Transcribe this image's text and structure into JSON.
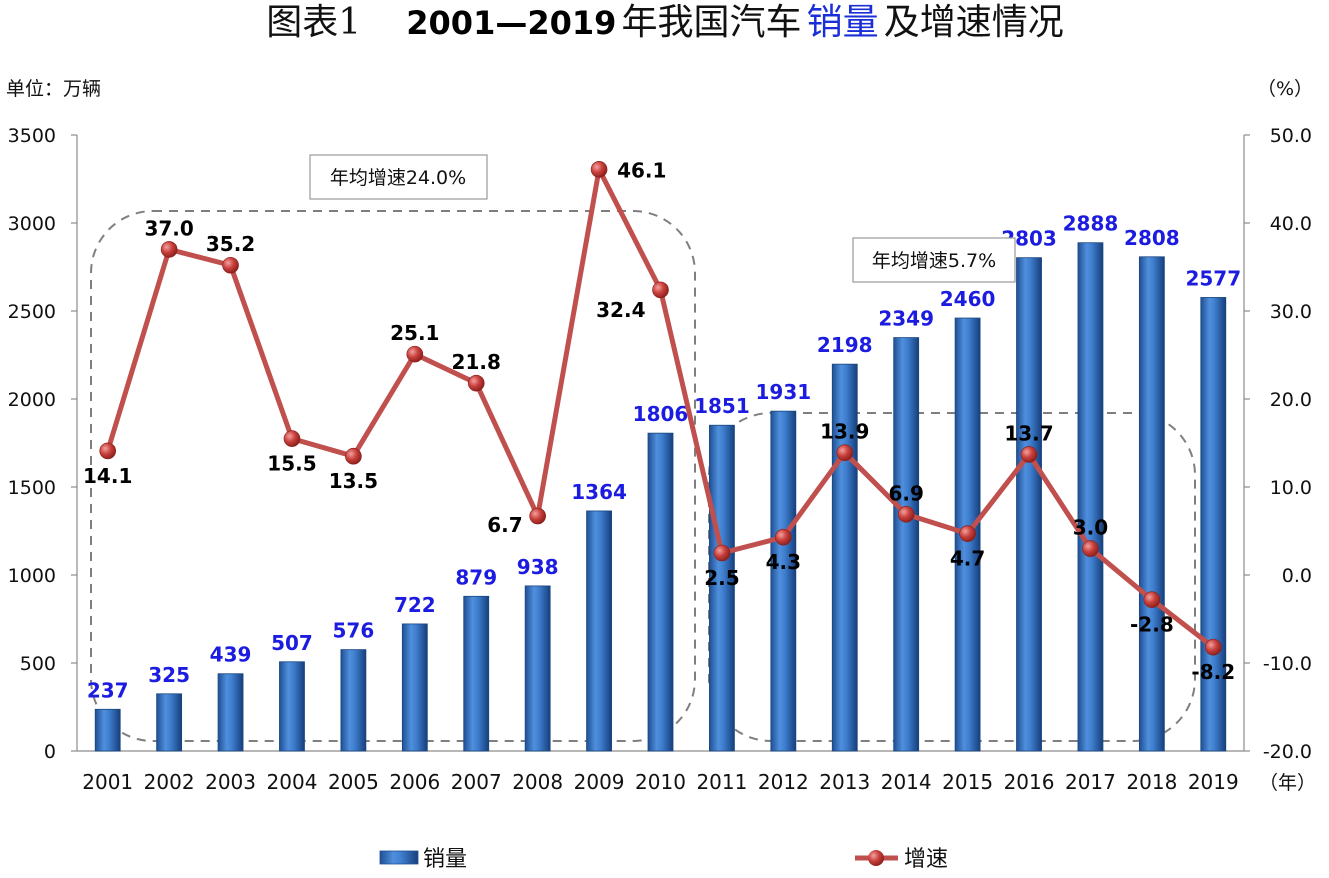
{
  "title": {
    "prefix": "图表1",
    "range": "2001—2019",
    "pre": "年我国汽车",
    "highlight": "销量",
    "post": "及增速情况"
  },
  "left_unit": "单位：万辆",
  "right_unit": "（%）",
  "x_unit": "（年）",
  "annotations": {
    "period1": "年均增速24.0%",
    "period2": "年均增速5.7%"
  },
  "legend": {
    "bar": "销量",
    "line": "增速"
  },
  "colors": {
    "bar": "#2f6fbf",
    "line": "#c0504d",
    "bar_label": "#1c1ce0"
  },
  "chart_data": {
    "type": "bar+line",
    "categories": [
      "2001",
      "2002",
      "2003",
      "2004",
      "2005",
      "2006",
      "2007",
      "2008",
      "2009",
      "2010",
      "2011",
      "2012",
      "2013",
      "2014",
      "2015",
      "2016",
      "2017",
      "2018",
      "2019"
    ],
    "series": [
      {
        "name": "销量",
        "type": "bar",
        "axis": "left",
        "values": [
          237,
          325,
          439,
          507,
          576,
          722,
          879,
          938,
          1364,
          1806,
          1851,
          1931,
          2198,
          2349,
          2460,
          2803,
          2888,
          2808,
          2577
        ],
        "labels": [
          "237",
          "325",
          "439",
          "507",
          "576",
          "722",
          "879",
          "938",
          "1364",
          "1806",
          "1851",
          "1931",
          "2198",
          "2349",
          "2460",
          "2803",
          "2888",
          "2808",
          "2577"
        ]
      },
      {
        "name": "增速",
        "type": "line",
        "axis": "right",
        "values": [
          14.1,
          37.0,
          35.2,
          15.5,
          13.5,
          25.1,
          21.8,
          6.7,
          46.1,
          32.4,
          2.5,
          4.3,
          13.9,
          6.9,
          4.7,
          13.7,
          3.0,
          -2.8,
          -8.2
        ],
        "labels": [
          "14.1",
          "37.0",
          "35.2",
          "15.5",
          "13.5",
          "25.1",
          "21.8",
          "6.7",
          "46.1",
          "32.4",
          "2.5",
          "4.3",
          "13.9",
          "6.9",
          "4.7",
          "13.7",
          "3.0",
          "-2.8",
          "-8.2"
        ]
      }
    ],
    "y_left": {
      "min": 0,
      "max": 3500,
      "ticks": [
        "0",
        "500",
        "1000",
        "1500",
        "2000",
        "2500",
        "3000",
        "3500"
      ]
    },
    "y_right": {
      "min": -20,
      "max": 50,
      "ticks": [
        "-20.0",
        "-10.0",
        "0.0",
        "10.0",
        "20.0",
        "30.0",
        "40.0",
        "50.0"
      ]
    },
    "grid": false,
    "legend_position": "bottom"
  }
}
